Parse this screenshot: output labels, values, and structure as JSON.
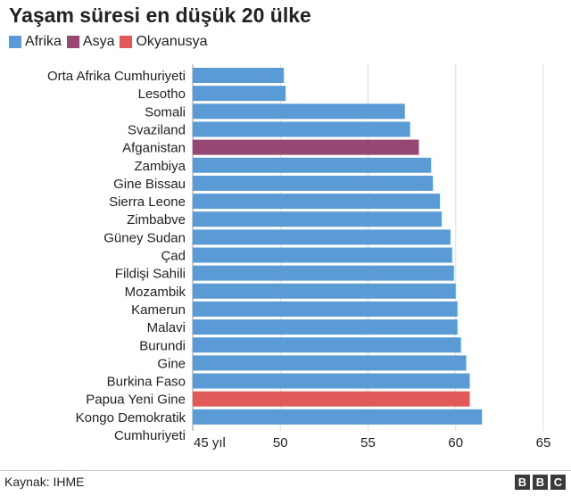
{
  "title": "Yaşam süresi en düşük 20 ülke",
  "legend": [
    {
      "label": "Afrika",
      "color": "#5a9ad5"
    },
    {
      "label": "Asya",
      "color": "#964873"
    },
    {
      "label": "Okyanusya",
      "color": "#e05a5a"
    }
  ],
  "source": "Kaynak: IHME",
  "logo": "BBC",
  "chart_data": {
    "type": "bar",
    "orientation": "horizontal",
    "categories": [
      "Orta Afrika Cumhuriyeti",
      "Lesotho",
      "Somali",
      "Svaziland",
      "Afganistan",
      "Zambiya",
      "Gine Bissau",
      "Sierra Leone",
      "Zimbabve",
      "Güney Sudan",
      "Çad",
      "Fildişi Sahili",
      "Mozambik",
      "Kamerun",
      "Malavi",
      "Burundi",
      "Gine",
      "Burkina Faso",
      "Papua Yeni Gine",
      "Kongo Demokratik Cumhuriyeti"
    ],
    "values": [
      50.2,
      50.3,
      57.1,
      57.4,
      57.9,
      58.6,
      58.7,
      59.1,
      59.2,
      59.7,
      59.8,
      59.9,
      60.0,
      60.1,
      60.1,
      60.3,
      60.6,
      60.8,
      60.8,
      61.5
    ],
    "region": [
      "Afrika",
      "Afrika",
      "Afrika",
      "Afrika",
      "Asya",
      "Afrika",
      "Afrika",
      "Afrika",
      "Afrika",
      "Afrika",
      "Afrika",
      "Afrika",
      "Afrika",
      "Afrika",
      "Afrika",
      "Afrika",
      "Afrika",
      "Afrika",
      "Okyanusya",
      "Afrika"
    ],
    "xlim": [
      45,
      65
    ],
    "xticks": [
      45,
      50,
      55,
      60,
      65
    ],
    "xtick_labels": [
      "45 yıl",
      "50",
      "55",
      "60",
      "65"
    ],
    "grid": true
  }
}
